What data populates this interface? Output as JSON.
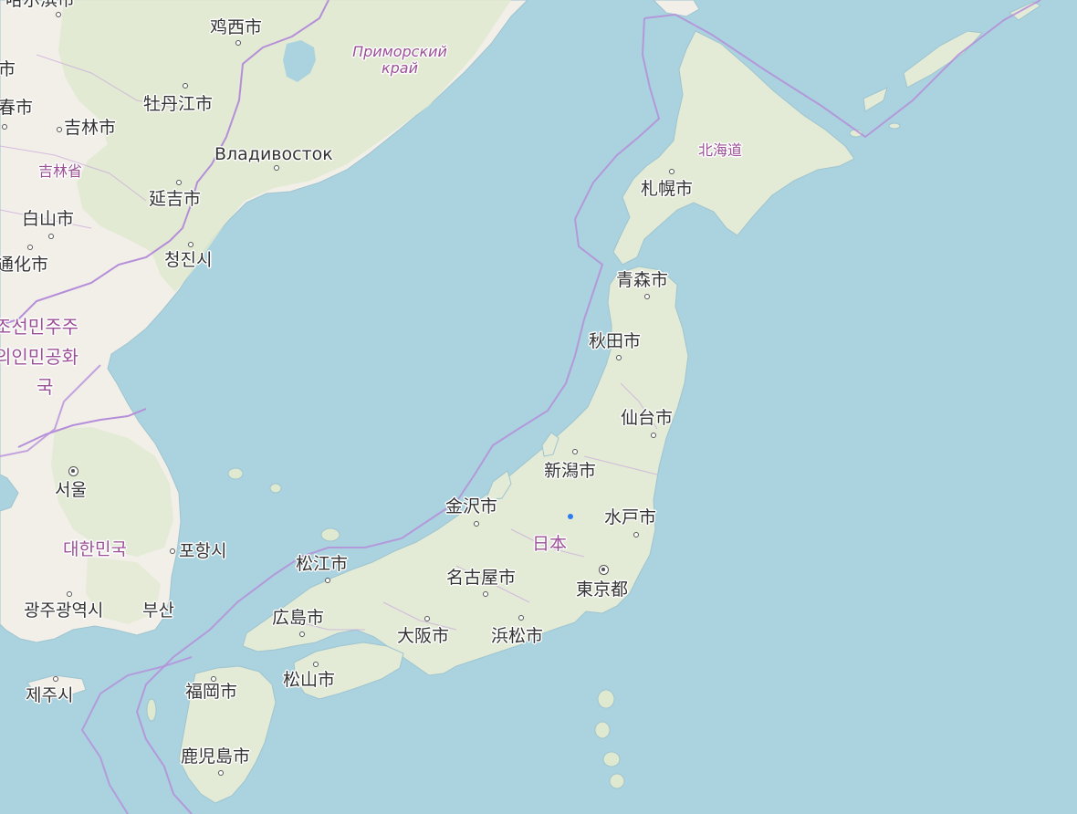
{
  "map": {
    "colors": {
      "sea": "#aad3df",
      "land": "#f2efe9",
      "forest": "#dfe9cf",
      "border": "#b58ed9",
      "label_admin": "#9b4f96",
      "location_marker": "#2f7bf0"
    },
    "labels": {
      "harbin": "哈尔滨市",
      "jixi": "鸡西市",
      "primorsky": "Приморский край",
      "changchun": "春市",
      "jilin_city": "吉林市",
      "mudanjiang": "牡丹江市",
      "jilin_province": "吉林省",
      "vladivostok": "Владивосток",
      "yanji": "延吉市",
      "baishan": "白山市",
      "chongjin": "청진시",
      "tonghua": "通化市",
      "north_korea": "조선민주주의인민공화국",
      "north_korea_line1": "조선민주주",
      "north_korea_line2": "의인민공화",
      "north_korea_line3": "국",
      "seoul": "서울",
      "south_korea": "대한민국",
      "pohang": "포항시",
      "gwangju": "광주광역시",
      "busan": "부산",
      "jeju": "제주시",
      "hokkaido": "北海道",
      "sapporo": "札幌市",
      "aomori": "青森市",
      "akita": "秋田市",
      "sendai": "仙台市",
      "niigata": "新潟市",
      "kanazawa": "金沢市",
      "mito": "水戸市",
      "japan": "日本",
      "matsue": "松江市",
      "nagoya": "名古屋市",
      "tokyo": "東京都",
      "hiroshima": "広島市",
      "osaka": "大阪市",
      "hamamatsu": "浜松市",
      "matsuyama": "松山市",
      "fukuoka": "福岡市",
      "kagoshima": "鹿児島市",
      "city_harbin_partial": "哈尔滨市",
      "city_left_partial": "市"
    }
  }
}
